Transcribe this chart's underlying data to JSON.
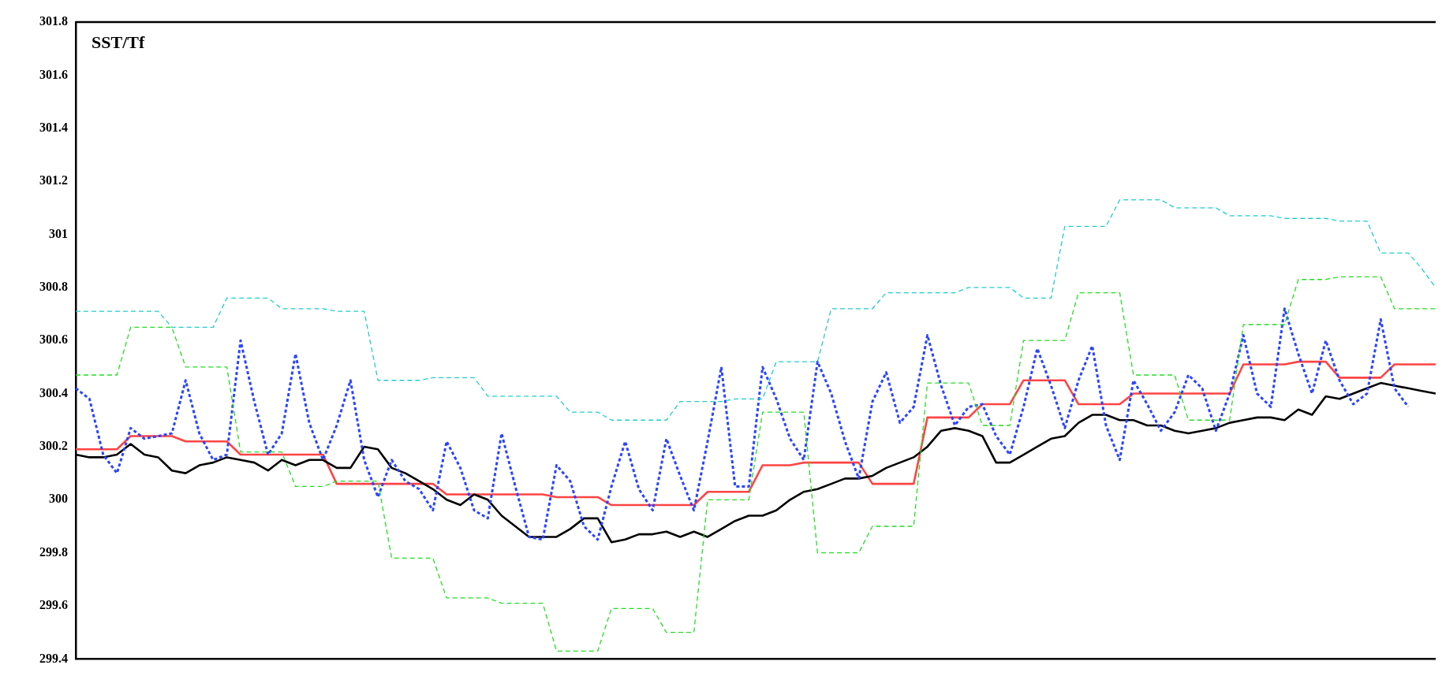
{
  "chart_data": {
    "type": "line",
    "title": "SST/Tf",
    "categories": [
      null,
      null,
      null,
      null,
      null,
      null,
      null,
      null,
      null,
      null,
      null,
      null,
      null,
      null,
      null,
      null,
      null,
      null,
      null,
      null,
      null,
      null,
      null,
      null,
      null,
      null,
      null,
      null,
      null,
      null,
      null,
      null,
      null,
      null,
      null,
      null,
      null,
      null,
      null,
      null,
      null,
      null,
      null,
      null,
      null,
      null,
      null,
      null,
      null,
      null,
      null,
      null,
      null,
      null,
      null,
      null,
      null,
      null,
      null,
      null,
      null,
      null,
      null,
      null,
      null,
      null,
      null,
      null,
      null,
      null,
      null,
      null,
      null,
      null,
      null,
      null,
      null,
      null,
      null,
      null,
      null,
      null,
      null,
      null,
      null,
      null,
      null,
      null,
      null,
      null,
      null,
      null,
      null,
      null,
      null,
      null,
      null,
      null,
      null,
      null
    ],
    "ylim": [
      299.4,
      301.8
    ],
    "yticks": [
      299.4,
      299.6,
      299.8,
      300,
      300.2,
      300.4,
      300.6,
      300.8,
      301,
      301.2,
      301.4,
      301.6,
      301.8
    ],
    "tick_labels": "y",
    "grid": false,
    "legend": false,
    "marker": "none",
    "series": [
      {
        "color": "#22cccc",
        "line_style": "dashed",
        "values": [
          300.71,
          300.71,
          300.71,
          300.71,
          300.71,
          300.71,
          300.71,
          300.65,
          300.65,
          300.65,
          300.65,
          300.76,
          300.76,
          300.76,
          300.76,
          300.72,
          300.72,
          300.72,
          300.72,
          300.71,
          300.71,
          300.71,
          300.45,
          300.45,
          300.45,
          300.45,
          300.46,
          300.46,
          300.46,
          300.46,
          300.39,
          300.39,
          300.39,
          300.39,
          300.39,
          300.39,
          300.33,
          300.33,
          300.33,
          300.3,
          300.3,
          300.3,
          300.3,
          300.3,
          300.37,
          300.37,
          300.37,
          300.37,
          300.38,
          300.38,
          300.38,
          300.52,
          300.52,
          300.52,
          300.52,
          300.72,
          300.72,
          300.72,
          300.72,
          300.78,
          300.78,
          300.78,
          300.78,
          300.78,
          300.78,
          300.8,
          300.8,
          300.8,
          300.8,
          300.76,
          300.76,
          300.76,
          301.03,
          301.03,
          301.03,
          301.03,
          301.13,
          301.13,
          301.13,
          301.13,
          301.1,
          301.1,
          301.1,
          301.1,
          301.07,
          301.07,
          301.07,
          301.07,
          301.06,
          301.06,
          301.06,
          301.06,
          301.05,
          301.05,
          301.05,
          300.93,
          300.93,
          300.93,
          300.87,
          300.8
        ]
      },
      {
        "color": "#22dd22",
        "line_style": "dashed",
        "values": [
          300.47,
          300.47,
          300.47,
          300.47,
          300.65,
          300.65,
          300.65,
          300.65,
          300.5,
          300.5,
          300.5,
          300.5,
          300.18,
          300.18,
          300.18,
          300.18,
          300.05,
          300.05,
          300.05,
          300.07,
          300.07,
          300.07,
          300.07,
          299.78,
          299.78,
          299.78,
          299.78,
          299.63,
          299.63,
          299.63,
          299.63,
          299.61,
          299.61,
          299.61,
          299.61,
          299.43,
          299.43,
          299.43,
          299.43,
          299.59,
          299.59,
          299.59,
          299.59,
          299.5,
          299.5,
          299.5,
          300,
          300,
          300,
          300,
          300.33,
          300.33,
          300.33,
          300.33,
          299.8,
          299.8,
          299.8,
          299.8,
          299.9,
          299.9,
          299.9,
          299.9,
          300.44,
          300.44,
          300.44,
          300.44,
          300.28,
          300.28,
          300.28,
          300.6,
          300.6,
          300.6,
          300.6,
          300.78,
          300.78,
          300.78,
          300.78,
          300.47,
          300.47,
          300.47,
          300.47,
          300.3,
          300.3,
          300.3,
          300.3,
          300.66,
          300.66,
          300.66,
          300.66,
          300.83,
          300.83,
          300.83,
          300.84,
          300.84,
          300.84,
          300.84,
          300.72,
          300.72,
          300.72,
          300.72
        ]
      },
      {
        "color": "#2a44ff",
        "line_style": "dotted",
        "values": [
          300.42,
          300.38,
          300.17,
          300.1,
          300.27,
          300.23,
          300.24,
          300.25,
          300.45,
          300.25,
          300.15,
          300.17,
          300.6,
          300.37,
          300.17,
          300.25,
          300.55,
          300.29,
          300.15,
          300.28,
          300.45,
          300.15,
          300.01,
          300.15,
          300.07,
          300.04,
          299.96,
          300.22,
          300.12,
          299.96,
          299.93,
          300.25,
          300.05,
          299.86,
          299.85,
          300.13,
          300.07,
          299.9,
          299.85,
          300.05,
          300.22,
          300.04,
          299.96,
          300.23,
          300.09,
          299.96,
          300.22,
          300.5,
          300.05,
          300.05,
          300.5,
          300.38,
          300.23,
          300.15,
          300.52,
          300.4,
          300.22,
          300.08,
          300.37,
          300.48,
          300.29,
          300.35,
          300.62,
          300.43,
          300.28,
          300.35,
          300.36,
          300.24,
          300.17,
          300.35,
          300.57,
          300.43,
          300.27,
          300.45,
          300.58,
          300.28,
          300.15,
          300.45,
          300.36,
          300.26,
          300.33,
          300.47,
          300.42,
          300.26,
          300.4,
          300.62,
          300.4,
          300.35,
          300.72,
          300.55,
          300.4,
          300.6,
          300.45,
          300.36,
          300.4,
          300.68,
          300.42,
          300.35,
          null,
          null
        ]
      },
      {
        "color": "#000000",
        "line_style": "solid",
        "values": [
          300.17,
          300.16,
          300.16,
          300.17,
          300.21,
          300.17,
          300.16,
          300.11,
          300.1,
          300.13,
          300.14,
          300.16,
          300.15,
          300.14,
          300.11,
          300.15,
          300.13,
          300.15,
          300.15,
          300.12,
          300.12,
          300.2,
          300.19,
          300.12,
          300.1,
          300.07,
          300.04,
          300,
          299.98,
          300.02,
          300,
          299.94,
          299.9,
          299.86,
          299.86,
          299.86,
          299.89,
          299.93,
          299.93,
          299.84,
          299.85,
          299.87,
          299.87,
          299.88,
          299.86,
          299.88,
          299.86,
          299.89,
          299.92,
          299.94,
          299.94,
          299.96,
          300,
          300.03,
          300.04,
          300.06,
          300.08,
          300.08,
          300.09,
          300.12,
          300.14,
          300.16,
          300.2,
          300.26,
          300.27,
          300.26,
          300.24,
          300.14,
          300.14,
          300.17,
          300.2,
          300.23,
          300.24,
          300.29,
          300.32,
          300.32,
          300.3,
          300.3,
          300.28,
          300.28,
          300.26,
          300.25,
          300.26,
          300.27,
          300.29,
          300.3,
          300.31,
          300.31,
          300.3,
          300.34,
          300.32,
          300.39,
          300.38,
          300.4,
          300.42,
          300.44,
          300.43,
          300.42,
          300.41,
          300.4
        ]
      },
      {
        "color": "#ff4444",
        "line_style": "solid",
        "values": [
          300.19,
          300.19,
          300.19,
          300.19,
          300.24,
          300.24,
          300.24,
          300.24,
          300.22,
          300.22,
          300.22,
          300.22,
          300.17,
          300.17,
          300.17,
          300.17,
          300.17,
          300.17,
          300.17,
          300.06,
          300.06,
          300.06,
          300.06,
          300.06,
          300.06,
          300.06,
          300.06,
          300.02,
          300.02,
          300.02,
          300.02,
          300.02,
          300.02,
          300.02,
          300.02,
          300.01,
          300.01,
          300.01,
          300.01,
          299.98,
          299.98,
          299.98,
          299.98,
          299.98,
          299.98,
          299.98,
          300.03,
          300.03,
          300.03,
          300.03,
          300.13,
          300.13,
          300.13,
          300.14,
          300.14,
          300.14,
          300.14,
          300.14,
          300.06,
          300.06,
          300.06,
          300.06,
          300.31,
          300.31,
          300.31,
          300.31,
          300.36,
          300.36,
          300.36,
          300.45,
          300.45,
          300.45,
          300.45,
          300.36,
          300.36,
          300.36,
          300.36,
          300.4,
          300.4,
          300.4,
          300.4,
          300.4,
          300.4,
          300.4,
          300.4,
          300.51,
          300.51,
          300.51,
          300.51,
          300.52,
          300.52,
          300.52,
          300.46,
          300.46,
          300.46,
          300.46,
          300.51,
          300.51,
          300.51,
          300.51
        ]
      }
    ]
  }
}
